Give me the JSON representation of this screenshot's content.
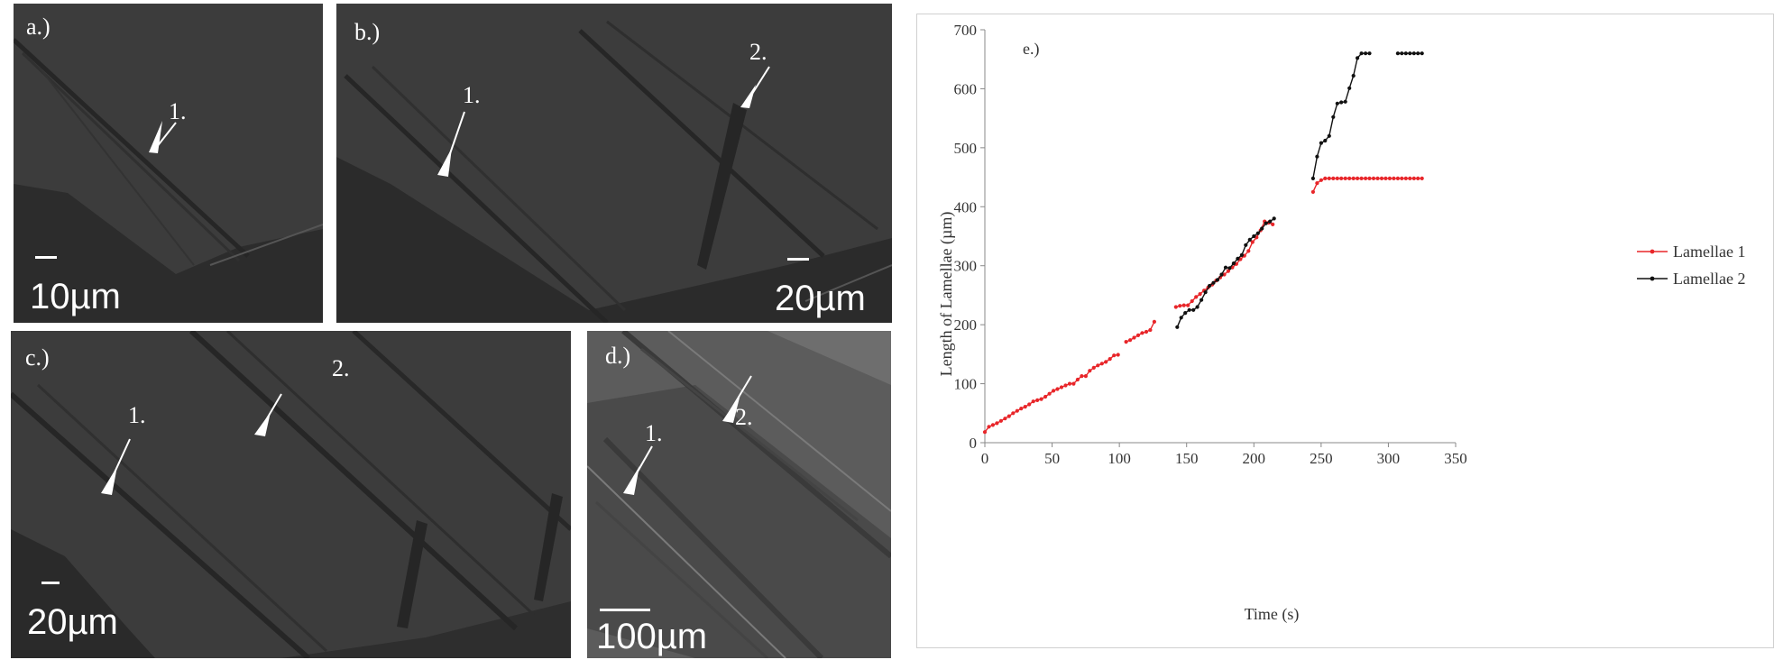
{
  "panels": {
    "a": {
      "label": "a.)",
      "scale": "10µm",
      "arrows": [
        "1."
      ]
    },
    "b": {
      "label": "b.)",
      "scale": "20µm",
      "arrows": [
        "1.",
        "2."
      ]
    },
    "c": {
      "label": "c.)",
      "scale": "20µm",
      "arrows": [
        "1.",
        "2."
      ]
    },
    "d": {
      "label": "d.)",
      "scale": "100µm",
      "arrows": [
        "1.",
        "2."
      ]
    }
  },
  "colors": {
    "series1": "#e8262a",
    "series2": "#111111",
    "micrograph_bg": "#3a3a3a",
    "micrograph_d_bg": "#5c5c5c"
  },
  "chart_data": {
    "type": "line",
    "panel_label": "e.)",
    "xlabel": "Time  (s)",
    "ylabel": "Length  of  Lamellae  (µm)",
    "xlim": [
      0,
      350
    ],
    "ylim": [
      0,
      700
    ],
    "xticks": [
      0,
      50,
      100,
      150,
      200,
      250,
      300,
      350
    ],
    "yticks": [
      0,
      100,
      200,
      300,
      400,
      500,
      600,
      700
    ],
    "legend_position": "right",
    "series": [
      {
        "name": "Lamellae 1",
        "color": "#e8262a",
        "segments": [
          [
            [
              0,
              18
            ],
            [
              3,
              27
            ],
            [
              6,
              30
            ],
            [
              9,
              33
            ],
            [
              12,
              37
            ],
            [
              15,
              41
            ],
            [
              18,
              45
            ],
            [
              21,
              50
            ],
            [
              24,
              54
            ],
            [
              27,
              58
            ],
            [
              30,
              61
            ],
            [
              33,
              65
            ],
            [
              36,
              70
            ],
            [
              39,
              72
            ],
            [
              42,
              74
            ],
            [
              45,
              78
            ],
            [
              48,
              83
            ],
            [
              51,
              88
            ],
            [
              54,
              91
            ],
            [
              57,
              94
            ],
            [
              60,
              97
            ],
            [
              63,
              100
            ],
            [
              66,
              100
            ],
            [
              69,
              107
            ],
            [
              72,
              113
            ],
            [
              75,
              113
            ],
            [
              78,
              122
            ],
            [
              81,
              127
            ],
            [
              84,
              131
            ],
            [
              87,
              134
            ],
            [
              90,
              137
            ],
            [
              93,
              142
            ],
            [
              96,
              148
            ],
            [
              99,
              149
            ]
          ],
          [
            [
              105,
              171
            ],
            [
              108,
              174
            ],
            [
              111,
              178
            ],
            [
              114,
              182
            ],
            [
              117,
              186
            ],
            [
              120,
              188
            ],
            [
              123,
              191
            ],
            [
              126,
              205
            ]
          ],
          [
            [
              142,
              230
            ],
            [
              145,
              232
            ],
            [
              148,
              233
            ],
            [
              151,
              233
            ],
            [
              154,
              240
            ],
            [
              157,
              247
            ],
            [
              160,
              252
            ],
            [
              163,
              258
            ],
            [
              166,
              263
            ],
            [
              169,
              268
            ],
            [
              172,
              275
            ],
            [
              175,
              280
            ],
            [
              178,
              285
            ],
            [
              181,
              291
            ],
            [
              184,
              297
            ],
            [
              187,
              303
            ],
            [
              190,
              311
            ],
            [
              193,
              317
            ],
            [
              196,
              325
            ],
            [
              199,
              340
            ],
            [
              202,
              348
            ],
            [
              205,
              360
            ],
            [
              208,
              375
            ],
            [
              211,
              373
            ],
            [
              214,
              370
            ]
          ],
          [
            [
              244,
              425
            ],
            [
              247,
              440
            ],
            [
              250,
              445
            ],
            [
              253,
              448
            ],
            [
              256,
              448
            ],
            [
              259,
              448
            ],
            [
              262,
              448
            ],
            [
              265,
              448
            ],
            [
              268,
              448
            ],
            [
              271,
              448
            ],
            [
              274,
              448
            ],
            [
              277,
              448
            ],
            [
              280,
              448
            ],
            [
              283,
              448
            ],
            [
              286,
              448
            ],
            [
              289,
              448
            ],
            [
              292,
              448
            ],
            [
              295,
              448
            ],
            [
              298,
              448
            ],
            [
              301,
              448
            ],
            [
              304,
              448
            ],
            [
              307,
              448
            ],
            [
              310,
              448
            ],
            [
              313,
              448
            ],
            [
              316,
              448
            ],
            [
              319,
              448
            ],
            [
              322,
              448
            ],
            [
              325,
              448
            ]
          ]
        ]
      },
      {
        "name": "Lamellae 2",
        "color": "#111111",
        "segments": [
          [
            [
              143,
              196
            ],
            [
              146,
              212
            ],
            [
              149,
              220
            ],
            [
              152,
              225
            ],
            [
              155,
              225
            ],
            [
              158,
              230
            ],
            [
              161,
              242
            ],
            [
              164,
              255
            ],
            [
              167,
              266
            ],
            [
              170,
              271
            ],
            [
              173,
              276
            ],
            [
              176,
              285
            ],
            [
              179,
              297
            ],
            [
              182,
              296
            ],
            [
              185,
              304
            ],
            [
              188,
              312
            ],
            [
              191,
              318
            ],
            [
              194,
              335
            ],
            [
              197,
              344
            ],
            [
              200,
              350
            ],
            [
              203,
              355
            ],
            [
              206,
              363
            ],
            [
              209,
              372
            ],
            [
              212,
              375
            ],
            [
              215,
              380
            ]
          ],
          [
            [
              244,
              448
            ],
            [
              247,
              485
            ],
            [
              250,
              508
            ],
            [
              253,
              512
            ],
            [
              256,
              520
            ],
            [
              259,
              552
            ],
            [
              262,
              575
            ],
            [
              265,
              577
            ],
            [
              268,
              578
            ],
            [
              271,
              601
            ],
            [
              274,
              622
            ],
            [
              277,
              652
            ],
            [
              280,
              660
            ],
            [
              283,
              660
            ],
            [
              286,
              660
            ]
          ],
          [
            [
              307,
              660
            ],
            [
              310,
              660
            ],
            [
              313,
              660
            ],
            [
              316,
              660
            ],
            [
              319,
              660
            ],
            [
              322,
              660
            ],
            [
              325,
              660
            ]
          ]
        ]
      }
    ]
  }
}
